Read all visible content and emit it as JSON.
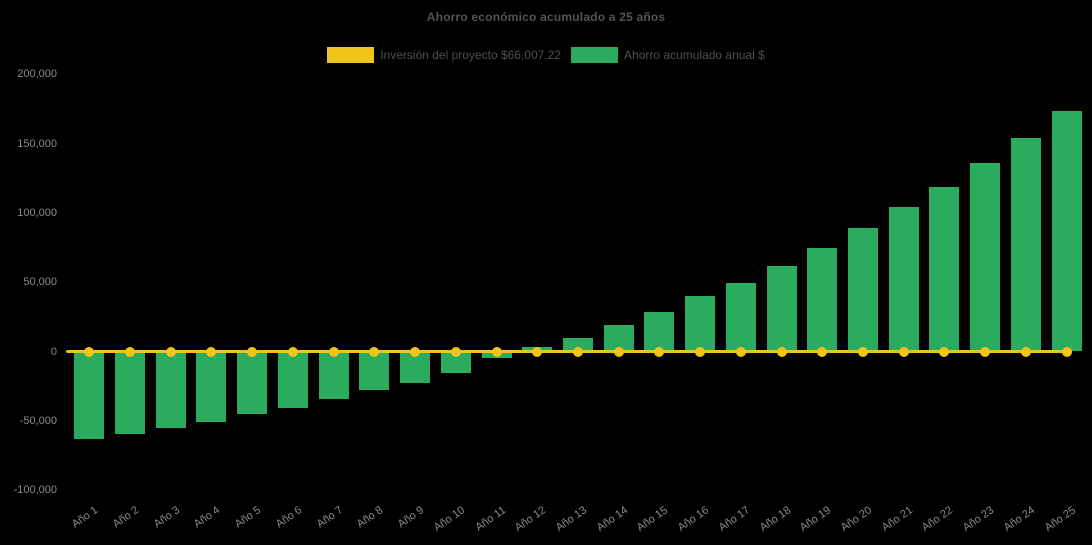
{
  "title": "Ahorro económico acumulado a 25 años",
  "legend": [
    {
      "label": "Inversión del proyecto $66,007.22",
      "color": "#F0C41B"
    },
    {
      "label": "Ahorro acumulado anual $",
      "color": "#2BAB5D"
    }
  ],
  "colors": {
    "background": "#000000",
    "bar_green": "#2BAB5D",
    "line_yellow": "#F0C41B",
    "title_text": "#535353",
    "legend_text": "#4f4f4f",
    "tick_text": "#8a8a8a"
  },
  "chart_data": {
    "type": "bar",
    "title": "Ahorro económico acumulado a 25 años",
    "categories": [
      "Año 1",
      "Año 2",
      "Año 3",
      "Año 4",
      "Año 5",
      "Año 6",
      "Año 7",
      "Año 8",
      "Año 9",
      "Año 10",
      "Año 11",
      "Año 12",
      "Año 13",
      "Año 14",
      "Año 15",
      "Año 16",
      "Año 17",
      "Año 18",
      "Año 19",
      "Año 20",
      "Año 21",
      "Año 22",
      "Año 23",
      "Año 24",
      "Año 25"
    ],
    "series": [
      {
        "name": "Inversión del proyecto $66,007.22",
        "type": "line",
        "color": "#F0C41B",
        "values": [
          0,
          0,
          0,
          0,
          0,
          0,
          0,
          0,
          0,
          0,
          0,
          0,
          0,
          0,
          0,
          0,
          0,
          0,
          0,
          0,
          0,
          0,
          0,
          0,
          0
        ]
      },
      {
        "name": "Ahorro acumulado anual $",
        "type": "bar",
        "color": "#2BAB5D",
        "values": [
          -63000,
          -59500,
          -55000,
          -51000,
          -45000,
          -41000,
          -34000,
          -28000,
          -23000,
          -15500,
          -4500,
          3000,
          9500,
          19000,
          28500,
          40000,
          49500,
          62000,
          75000,
          89000,
          104000,
          119000,
          136000,
          154000,
          173500
        ]
      }
    ],
    "xlabel": "",
    "ylabel": "",
    "ylim": [
      -100000,
      200000
    ],
    "yticks": [
      200000,
      150000,
      100000,
      50000,
      0,
      -50000,
      -100000
    ],
    "ytick_labels": [
      "200,000",
      "150,000",
      "100,000",
      "50,000",
      "0",
      "-50,000",
      "-100,000"
    ],
    "grid": false,
    "legend_position": "top-center",
    "plot_background": "#000000"
  }
}
